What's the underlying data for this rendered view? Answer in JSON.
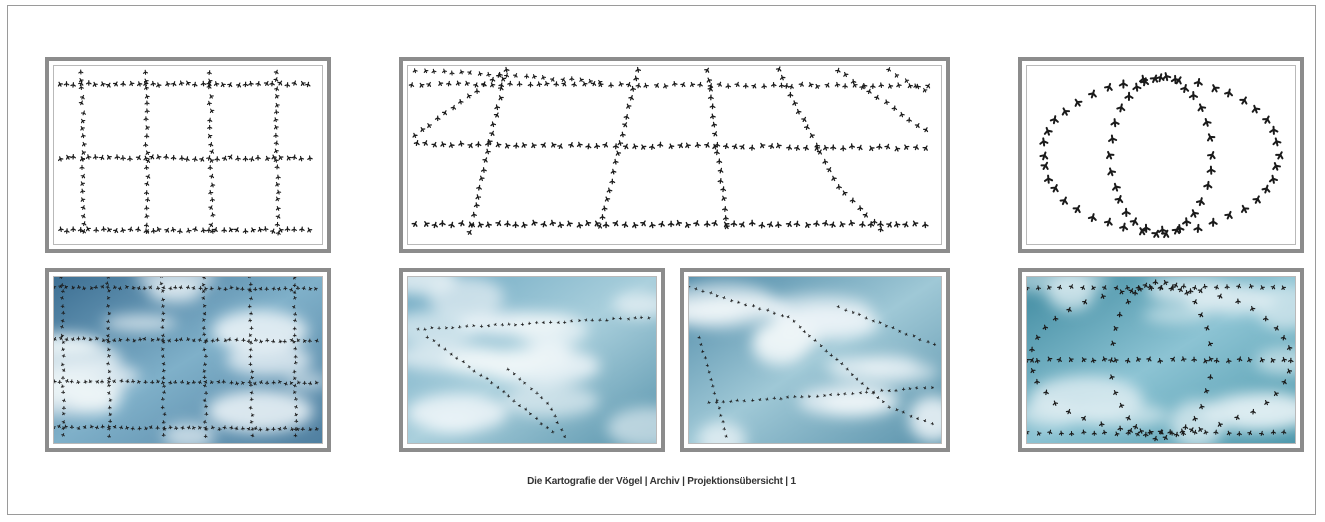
{
  "caption": "Die Kartografie der Vögel | Archiv | Projektionsübersicht | 1",
  "colors": {
    "frame": "#8c8c8c",
    "bird": "#1a1a1a",
    "sky_dark": "#3d6f93",
    "sky_mid": "#7fb0c9",
    "cloud": "#eef5f8",
    "sky_teal": "#5fa3b4"
  },
  "panels": [
    {
      "id": "grid-drawing",
      "kind": "drawing",
      "pattern": "grid"
    },
    {
      "id": "perspective-drawing",
      "kind": "drawing",
      "pattern": "perspective"
    },
    {
      "id": "ring-drawing",
      "kind": "drawing",
      "pattern": "rings"
    },
    {
      "id": "grid-photo",
      "kind": "photo",
      "pattern": "grid"
    },
    {
      "id": "perspective-photo-left",
      "kind": "photo",
      "pattern": "perspective-left"
    },
    {
      "id": "perspective-photo-right",
      "kind": "photo",
      "pattern": "perspective-right"
    },
    {
      "id": "ring-photo",
      "kind": "photo",
      "pattern": "rings"
    }
  ]
}
